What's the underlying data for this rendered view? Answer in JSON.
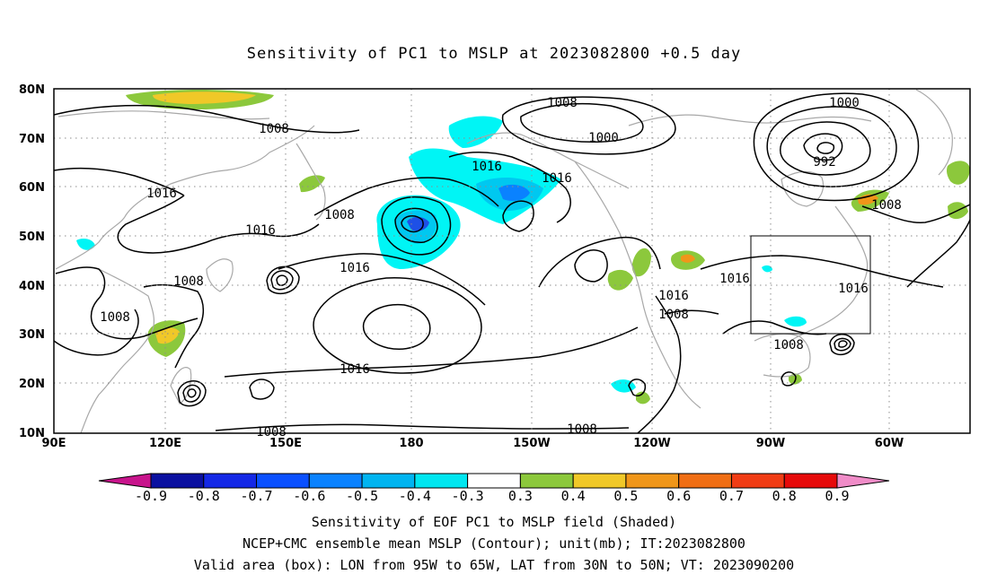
{
  "title": "Sensitivity of PC1 to MSLP at 2023082800 +0.5 day",
  "map": {
    "lat_labels": [
      "80N",
      "70N",
      "60N",
      "50N",
      "40N",
      "30N",
      "20N",
      "10N"
    ],
    "lon_labels": [
      "90E",
      "120E",
      "150E",
      "180",
      "150W",
      "120W",
      "90W",
      "60W"
    ],
    "contour_labels": [
      "1008",
      "1008",
      "1016",
      "1016",
      "1008",
      "1016",
      "1008",
      "1016",
      "1016",
      "1008",
      "1008",
      "1016",
      "1000",
      "1000",
      "992",
      "1016",
      "1008",
      "1016",
      "1008",
      "1016",
      "1008",
      "1008",
      "1008"
    ],
    "colors": {
      "contour": "#000000",
      "coast": "#a8a8a8",
      "grid": "#8c8c8c",
      "neg_light": "#00f5f5",
      "neg_mid": "#00c8f0",
      "neg_strong": "#0a82ff",
      "neg_deep": "#1e50e6",
      "pos_green": "#8cc83c",
      "pos_yellow": "#f0c828",
      "pos_orange": "#f09619"
    }
  },
  "colorbar": {
    "labels": [
      "-0.9",
      "-0.8",
      "-0.7",
      "-0.6",
      "-0.5",
      "-0.4",
      "-0.3",
      "0.3",
      "0.4",
      "0.5",
      "0.6",
      "0.7",
      "0.8",
      "0.9"
    ],
    "colors": [
      "#0a10a0",
      "#1428e6",
      "#0a50ff",
      "#0a82ff",
      "#00b4f0",
      "#00e6f0",
      "#ffffff",
      "#8cc83c",
      "#f0c828",
      "#f09619",
      "#f06e14",
      "#f03c14",
      "#e60a0a"
    ],
    "low_end": "#c8148c",
    "high_end": "#f08cc8"
  },
  "captions": [
    "Sensitivity of EOF PC1 to MSLP field (Shaded)",
    "NCEP+CMC ensemble mean MSLP (Contour); unit(mb); IT:2023082800",
    "Valid area (box): LON from 95W to 65W, LAT from 30N to 50N; VT: 2023090200"
  ]
}
